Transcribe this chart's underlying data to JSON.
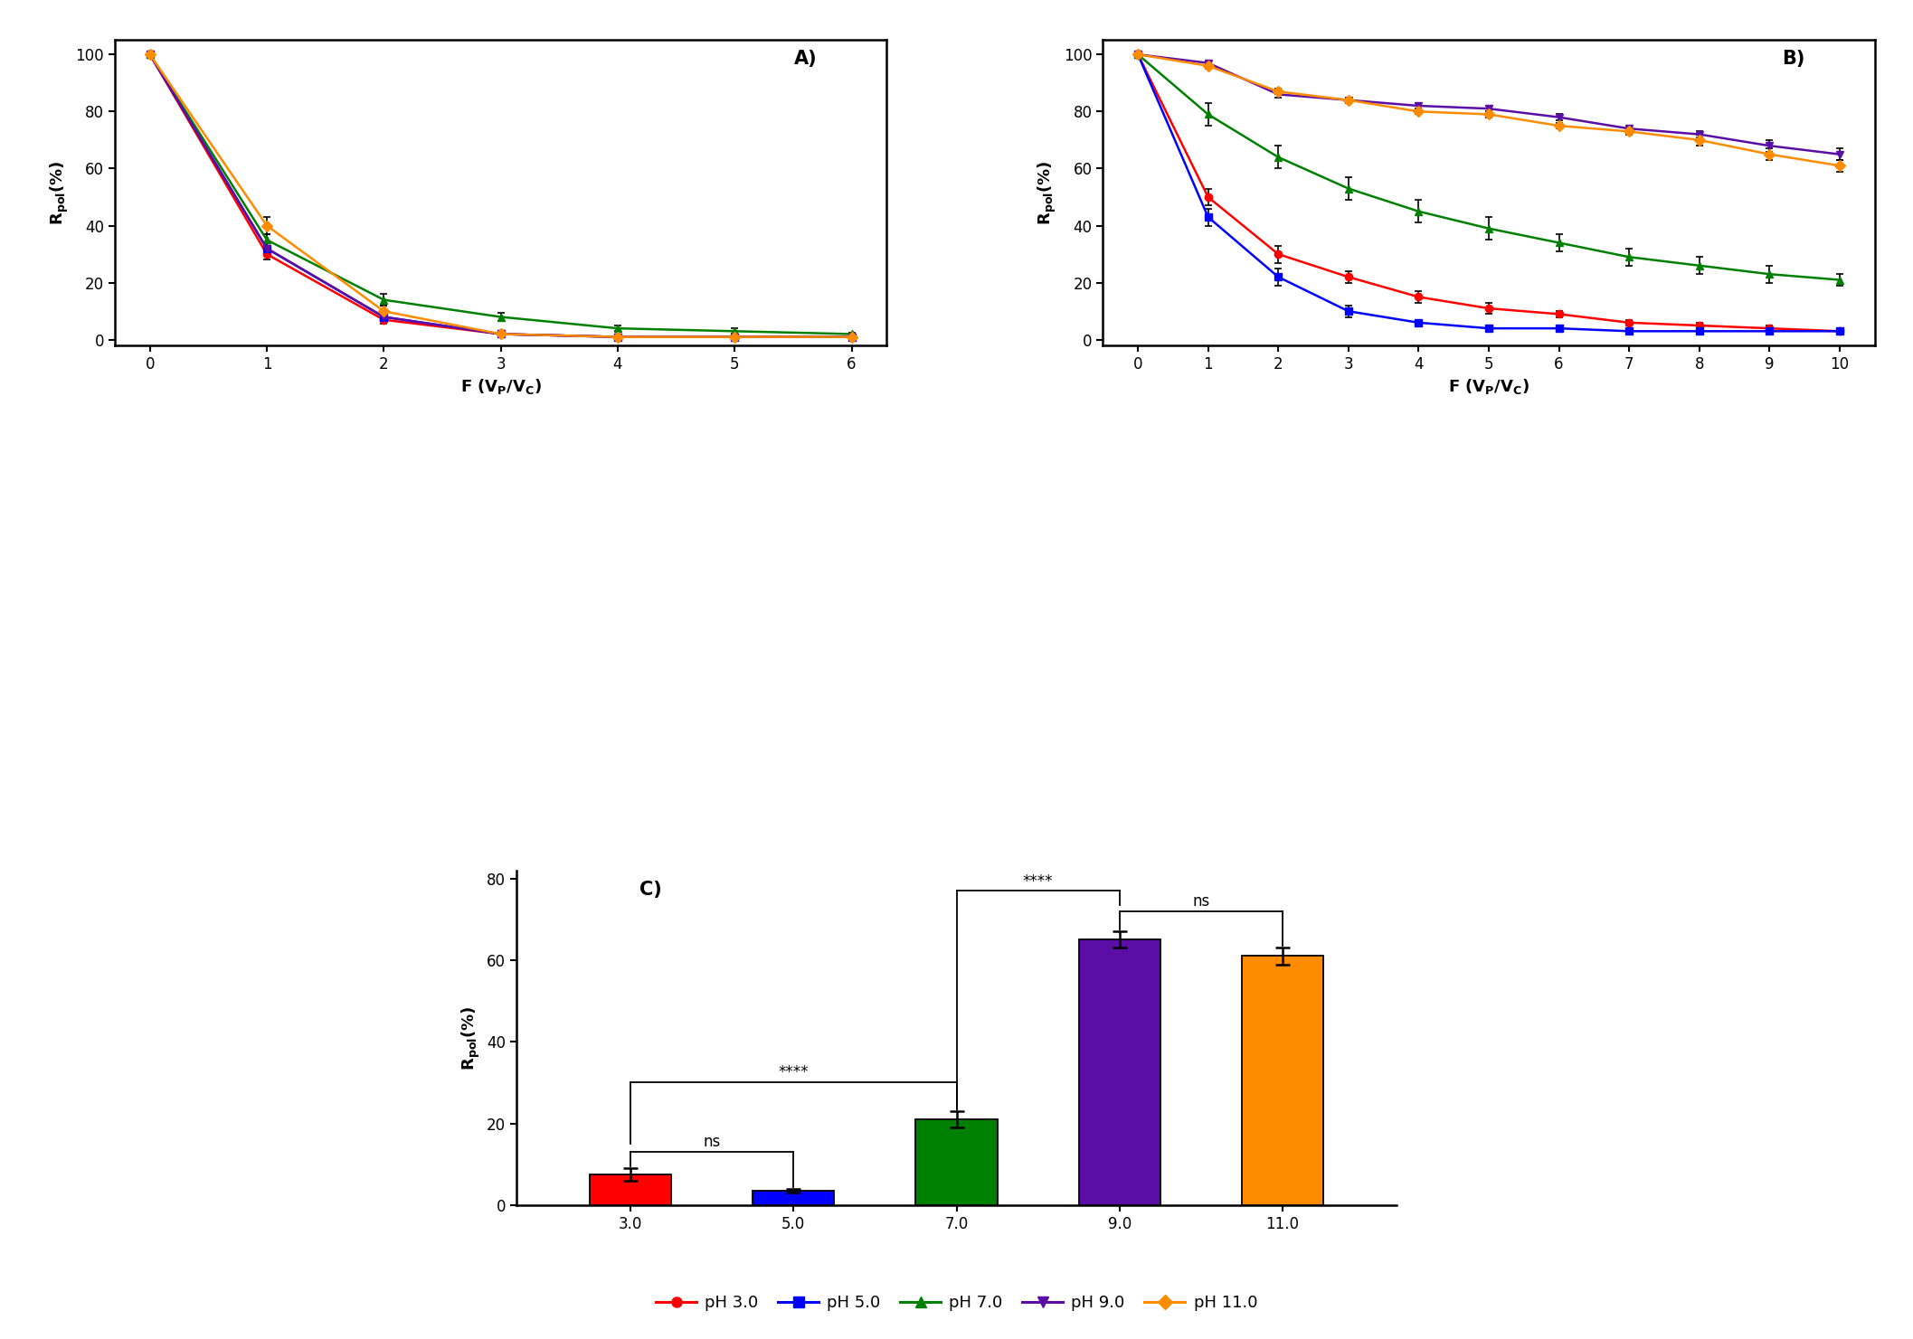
{
  "panel_A": {
    "x": [
      0,
      1,
      2,
      3,
      4,
      5,
      6
    ],
    "pH3": {
      "y": [
        100,
        30,
        7,
        2,
        1,
        1,
        1
      ],
      "yerr": [
        0,
        2,
        1.5,
        1,
        0.5,
        0.5,
        0.5
      ]
    },
    "pH5": {
      "y": [
        100,
        32,
        8,
        2,
        1,
        1,
        1
      ],
      "yerr": [
        0,
        2,
        1.5,
        1,
        0.5,
        0.5,
        0.5
      ]
    },
    "pH7": {
      "y": [
        100,
        35,
        14,
        8,
        4,
        3,
        2
      ],
      "yerr": [
        0,
        2,
        2,
        1.5,
        1,
        1,
        0.5
      ]
    },
    "pH9": {
      "y": [
        100,
        32,
        8,
        2,
        1,
        1,
        1
      ],
      "yerr": [
        0,
        2,
        1.5,
        1,
        0.5,
        0.5,
        0.5
      ]
    },
    "pH11": {
      "y": [
        100,
        40,
        10,
        2,
        1,
        1,
        1
      ],
      "yerr": [
        0,
        3,
        2,
        1,
        0.5,
        0.5,
        0.5
      ]
    }
  },
  "panel_B": {
    "x": [
      0,
      1,
      2,
      3,
      4,
      5,
      6,
      7,
      8,
      9,
      10
    ],
    "pH3": {
      "y": [
        100,
        50,
        30,
        22,
        15,
        11,
        9,
        6,
        5,
        4,
        3
      ],
      "yerr": [
        0,
        3,
        3,
        2,
        2,
        2,
        1,
        1,
        1,
        1,
        1
      ]
    },
    "pH5": {
      "y": [
        100,
        43,
        22,
        10,
        6,
        4,
        4,
        3,
        3,
        3,
        3
      ],
      "yerr": [
        0,
        3,
        3,
        2,
        1,
        1,
        1,
        1,
        1,
        1,
        1
      ]
    },
    "pH7": {
      "y": [
        100,
        79,
        64,
        53,
        45,
        39,
        34,
        29,
        26,
        23,
        21
      ],
      "yerr": [
        0,
        4,
        4,
        4,
        4,
        4,
        3,
        3,
        3,
        3,
        2
      ]
    },
    "pH9": {
      "y": [
        100,
        97,
        86,
        84,
        82,
        81,
        78,
        74,
        72,
        68,
        65
      ],
      "yerr": [
        0,
        1,
        1,
        1,
        1,
        1,
        1,
        1,
        1,
        2,
        2
      ]
    },
    "pH11": {
      "y": [
        100,
        96,
        87,
        84,
        80,
        79,
        75,
        73,
        70,
        65,
        61
      ],
      "yerr": [
        0,
        1,
        1,
        1,
        1,
        1,
        1,
        1,
        2,
        2,
        2
      ]
    }
  },
  "panel_C": {
    "x_labels": [
      "3.0",
      "5.0",
      "7.0",
      "9.0",
      "11.0"
    ],
    "y": [
      7.5,
      3.5,
      21,
      65,
      61
    ],
    "yerr": [
      1.5,
      0.5,
      2,
      2,
      2
    ],
    "colors": [
      "#FF0000",
      "#0000FF",
      "#008000",
      "#5B0EA6",
      "#FF8C00"
    ]
  },
  "colors": {
    "pH3": "#FF0000",
    "pH5": "#0000FF",
    "pH7": "#008000",
    "pH9": "#5B0EA6",
    "pH11": "#FF8C00"
  },
  "markers": {
    "pH3": "o",
    "pH5": "s",
    "pH7": "^",
    "pH9": "v",
    "pH11": "D"
  },
  "legend_labels": [
    "pH 3.0",
    "pH 5.0",
    "pH 7.0",
    "pH 9.0",
    "pH 11.0"
  ]
}
